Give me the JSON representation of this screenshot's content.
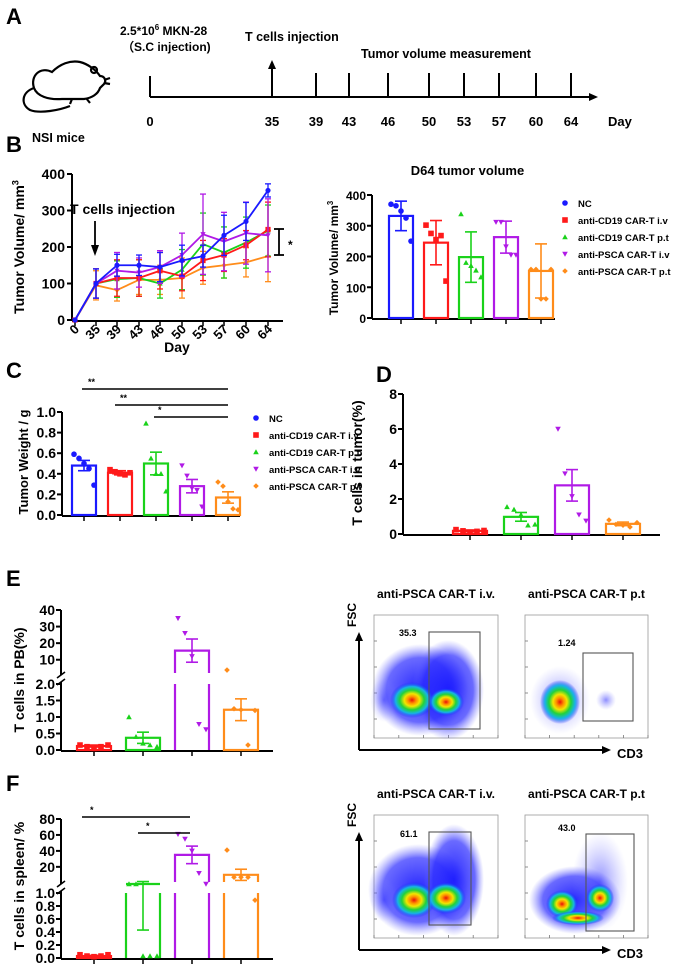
{
  "colors": {
    "NC": "#1a1aff",
    "CD19iv": "#ff1a1a",
    "CD19pt": "#1ad21a",
    "PSCAiv": "#b01ae6",
    "PSCApt": "#ff8c1a",
    "axis": "#000000"
  },
  "groups": [
    {
      "key": "NC",
      "label": "NC",
      "marker": "circle"
    },
    {
      "key": "CD19iv",
      "label": "anti-CD19 CAR-T i.v",
      "marker": "square"
    },
    {
      "key": "CD19pt",
      "label": "anti-CD19 CAR-T p.t",
      "marker": "triangle"
    },
    {
      "key": "PSCAiv",
      "label": "anti-PSCA CAR-T i.v",
      "marker": "triangle-down"
    },
    {
      "key": "PSCApt",
      "label": "anti-PSCA CAR-T p.t",
      "marker": "diamond"
    }
  ],
  "panelA": {
    "letter": "A",
    "mouse_label": "NSI mice",
    "inoculation_label_line1": "2.5*10",
    "inoculation_sup": "6",
    "inoculation_label_line1b": " MKN-28",
    "inoculation_label_line2": "（S.C injection)",
    "injection_label": "T cells injection",
    "measurement_label": "Tumor volume measurement",
    "days": [
      "0",
      "35",
      "39",
      "43",
      "46",
      "50",
      "53",
      "57",
      "60",
      "64"
    ],
    "day_unit": "Day"
  },
  "chart_data": [
    {
      "panel": "B-left",
      "type": "line",
      "title": "",
      "xlabel": "Day",
      "ylabel": "Tumor Volume/ mm",
      "ylabel_sup": "3",
      "x": [
        0,
        35,
        39,
        43,
        46,
        50,
        53,
        57,
        60,
        64
      ],
      "x_ticks": [
        "0",
        "35",
        "39",
        "43",
        "46",
        "50",
        "53",
        "57",
        "60",
        "64"
      ],
      "ylim": [
        0,
        400
      ],
      "y_ticks": [
        "0",
        "100",
        "200",
        "300",
        "400"
      ],
      "annotation": "T cells injection",
      "significance": "*",
      "series": [
        {
          "name": "NC",
          "values": [
            0,
            100,
            150,
            150,
            145,
            163,
            175,
            232,
            270,
            355
          ],
          "err": [
            0,
            40,
            30,
            28,
            40,
            42,
            30,
            55,
            52,
            18
          ]
        },
        {
          "name": "anti-CD19 CAR-T i.v",
          "values": [
            0,
            100,
            115,
            115,
            135,
            120,
            163,
            178,
            205,
            248
          ],
          "err": [
            0,
            40,
            50,
            50,
            50,
            40,
            55,
            45,
            40,
            75
          ]
        },
        {
          "name": "anti-CD19 CAR-T p.t",
          "values": [
            0,
            100,
            112,
            115,
            100,
            138,
            208,
            185,
            212,
            245
          ],
          "err": [
            0,
            40,
            50,
            50,
            40,
            55,
            85,
            70,
            70,
            70
          ]
        },
        {
          "name": "anti-PSCA CAR-T i.v",
          "values": [
            0,
            100,
            135,
            130,
            145,
            178,
            235,
            215,
            238,
            232
          ],
          "err": [
            0,
            40,
            50,
            40,
            45,
            60,
            110,
            80,
            85,
            100
          ]
        },
        {
          "name": "anti-PSCA CAR-T p.t",
          "values": [
            0,
            95,
            82,
            110,
            110,
            115,
            143,
            150,
            158,
            175
          ],
          "err": [
            0,
            40,
            30,
            40,
            40,
            55,
            45,
            35,
            40,
            70
          ]
        }
      ]
    },
    {
      "panel": "B-right",
      "type": "bar",
      "title": "D64 tumor volume",
      "ylabel": "Tumor Volume/ mm",
      "ylabel_sup": "3",
      "categories": [
        "NC",
        "anti-CD19 CAR-T i.v",
        "anti-CD19 CAR-T p.t",
        "anti-PSCA CAR-T i.v",
        "anti-PSCA CAR-T p.t"
      ],
      "ylim": [
        0,
        400
      ],
      "y_ticks": [
        "0",
        "100",
        "200",
        "300",
        "400"
      ],
      "values": [
        332,
        245,
        198,
        263,
        153
      ],
      "err": [
        48,
        72,
        82,
        52,
        88
      ],
      "points": [
        [
          370,
          365,
          348,
          325,
          250
        ],
        [
          302,
          275,
          255,
          268,
          120
        ],
        [
          338,
          180,
          170,
          155,
          133
        ],
        [
          312,
          312,
          232,
          205,
          205
        ],
        [
          158,
          158,
          62,
          62,
          158
        ]
      ],
      "legend": "right"
    },
    {
      "panel": "C",
      "type": "bar",
      "ylabel": "Tumor Weight / g",
      "categories": [
        "NC",
        "anti-CD19 CAR-T i.v",
        "anti-CD19 CAR-T p.t",
        "anti-PSCA CAR-T i.v",
        "anti-PSCA CAR-T p.t"
      ],
      "ylim": [
        0,
        1.0
      ],
      "y_ticks": [
        "0.0",
        "0.2",
        "0.4",
        "0.6",
        "0.8",
        "1.0"
      ],
      "values": [
        0.48,
        0.41,
        0.5,
        0.28,
        0.17
      ],
      "err": [
        0.05,
        0.02,
        0.11,
        0.065,
        0.055
      ],
      "points": [
        [
          0.59,
          0.55,
          0.5,
          0.45,
          0.29
        ],
        [
          0.44,
          0.42,
          0.4,
          0.39,
          0.41
        ],
        [
          0.89,
          0.55,
          0.4,
          0.4,
          0.23
        ],
        [
          0.48,
          0.38,
          0.26,
          0.24,
          0.08
        ],
        [
          0.32,
          0.28,
          0.13,
          0.06,
          0.05
        ]
      ],
      "significance": [
        {
          "from": 0,
          "to": 4,
          "label": "**"
        },
        {
          "from": 1,
          "to": 4,
          "label": "**"
        },
        {
          "from": 2,
          "to": 4,
          "label": "*"
        }
      ],
      "legend": "right"
    },
    {
      "panel": "D",
      "type": "bar",
      "ylabel": "T cells in tumor(%)",
      "categories": [
        "anti-CD19 CAR-T i.v",
        "anti-CD19 CAR-T p.t",
        "anti-PSCA CAR-T i.v",
        "anti-PSCA CAR-T p.t"
      ],
      "ylim": [
        0,
        8
      ],
      "y_ticks": [
        "0",
        "2",
        "4",
        "6",
        "8"
      ],
      "values": [
        0.18,
        0.98,
        2.78,
        0.58
      ],
      "err": [
        0.05,
        0.25,
        0.9,
        0.1
      ],
      "points": [
        [
          0.25,
          0.18,
          0.1,
          0.15,
          0.2
        ],
        [
          1.55,
          1.4,
          1.1,
          0.5,
          0.55
        ],
        [
          6.0,
          3.45,
          2.15,
          1.1,
          0.75
        ],
        [
          0.8,
          0.55,
          0.5,
          0.4,
          0.65
        ]
      ]
    },
    {
      "panel": "E",
      "type": "bar",
      "ylabel": "T cells in PB(%)",
      "categories": [
        "anti-CD19 CAR-T i.v",
        "anti-CD19 CAR-T p.t",
        "anti-PSCA CAR-T i.v",
        "anti-PSCA CAR-T p.t"
      ],
      "broken_axis": {
        "lower": [
          0,
          2.0
        ],
        "upper": [
          2.0,
          40
        ]
      },
      "y_ticks_lower": [
        "0.0",
        "0.5",
        "1.0",
        "1.5",
        "2.0"
      ],
      "y_ticks_upper": [
        "10",
        "20",
        "30",
        "40"
      ],
      "values": [
        0.12,
        0.37,
        15.5,
        1.22
      ],
      "err": [
        0.03,
        0.17,
        7,
        0.33
      ],
      "points": [
        [
          0.15,
          0.1,
          0.05,
          0.1,
          0.15
        ],
        [
          1.0,
          0.4,
          0.2,
          0.15,
          0.1
        ],
        [
          35,
          26,
          12,
          0.78,
          0.62
        ],
        [
          3.8,
          1.25,
          1.22,
          0.15,
          1.2
        ]
      ]
    },
    {
      "panel": "F",
      "type": "bar",
      "ylabel": "T cells in spleen/ %",
      "categories": [
        "anti-CD19 CAR-T i.v",
        "anti-CD19 CAR-T p.t",
        "anti-PSCA CAR-T i.v",
        "anti-PSCA CAR-T p.t"
      ],
      "broken_axis": {
        "lower": [
          0,
          1.0
        ],
        "upper": [
          1.0,
          80
        ]
      },
      "y_ticks_lower": [
        "0.0",
        "0.2",
        "0.4",
        "0.6",
        "0.8",
        "1.0"
      ],
      "y_ticks_upper": [
        "20",
        "40",
        "60",
        "80"
      ],
      "values": [
        0.03,
        1.0,
        35,
        10
      ],
      "err": [
        0.01,
        0.57,
        11,
        7
      ],
      "points": [
        [
          0.05,
          0.03,
          0.02,
          0.03,
          0.05
        ],
        [
          2,
          2,
          0.03,
          0.03,
          0.03
        ],
        [
          61,
          55,
          40,
          12,
          3
        ],
        [
          41,
          7,
          7,
          7,
          0.89
        ]
      ],
      "significance": [
        {
          "from": 0,
          "to": 2,
          "label": "*"
        },
        {
          "from": 1,
          "to": 2,
          "label": "*"
        }
      ]
    },
    {
      "panel": "E-flow",
      "type": "scatter",
      "xlabel": "CD3",
      "ylabel": "FSC",
      "plots": [
        {
          "title": "anti-PSCA CAR-T i.v.",
          "gate_value": "35.3"
        },
        {
          "title": "anti-PSCA CAR-T p.t",
          "gate_value": "1.24"
        }
      ]
    },
    {
      "panel": "F-flow",
      "type": "scatter",
      "xlabel": "CD3",
      "ylabel": "FSC",
      "plots": [
        {
          "title": "anti-PSCA CAR-T i.v.",
          "gate_value": "61.1"
        },
        {
          "title": "anti-PSCA CAR-T p.t",
          "gate_value": "43.0"
        }
      ]
    }
  ],
  "letters": {
    "B": "B",
    "C": "C",
    "D": "D",
    "E": "E",
    "F": "F"
  }
}
